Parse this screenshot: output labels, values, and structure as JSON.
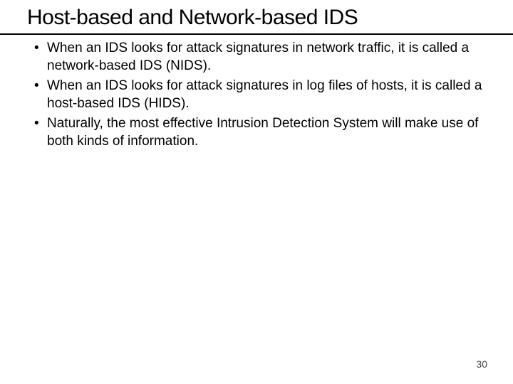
{
  "slide": {
    "title": "Host-based and Network-based IDS",
    "title_fontsize": 30,
    "bullets": [
      "When an IDS looks for attack signatures in network traffic, it is called a network-based IDS (NIDS).",
      "When an IDS looks for attack signatures in log files of hosts, it is called a host-based IDS (HIDS).",
      "Naturally, the most effective Intrusion Detection System will make use of both kinds of information."
    ],
    "bullet_fontsize": 19,
    "page_number": "30",
    "page_number_fontsize": 14,
    "colors": {
      "background": "#ffffff",
      "text": "#000000",
      "hr": "#000000",
      "page_number": "#444444"
    }
  }
}
